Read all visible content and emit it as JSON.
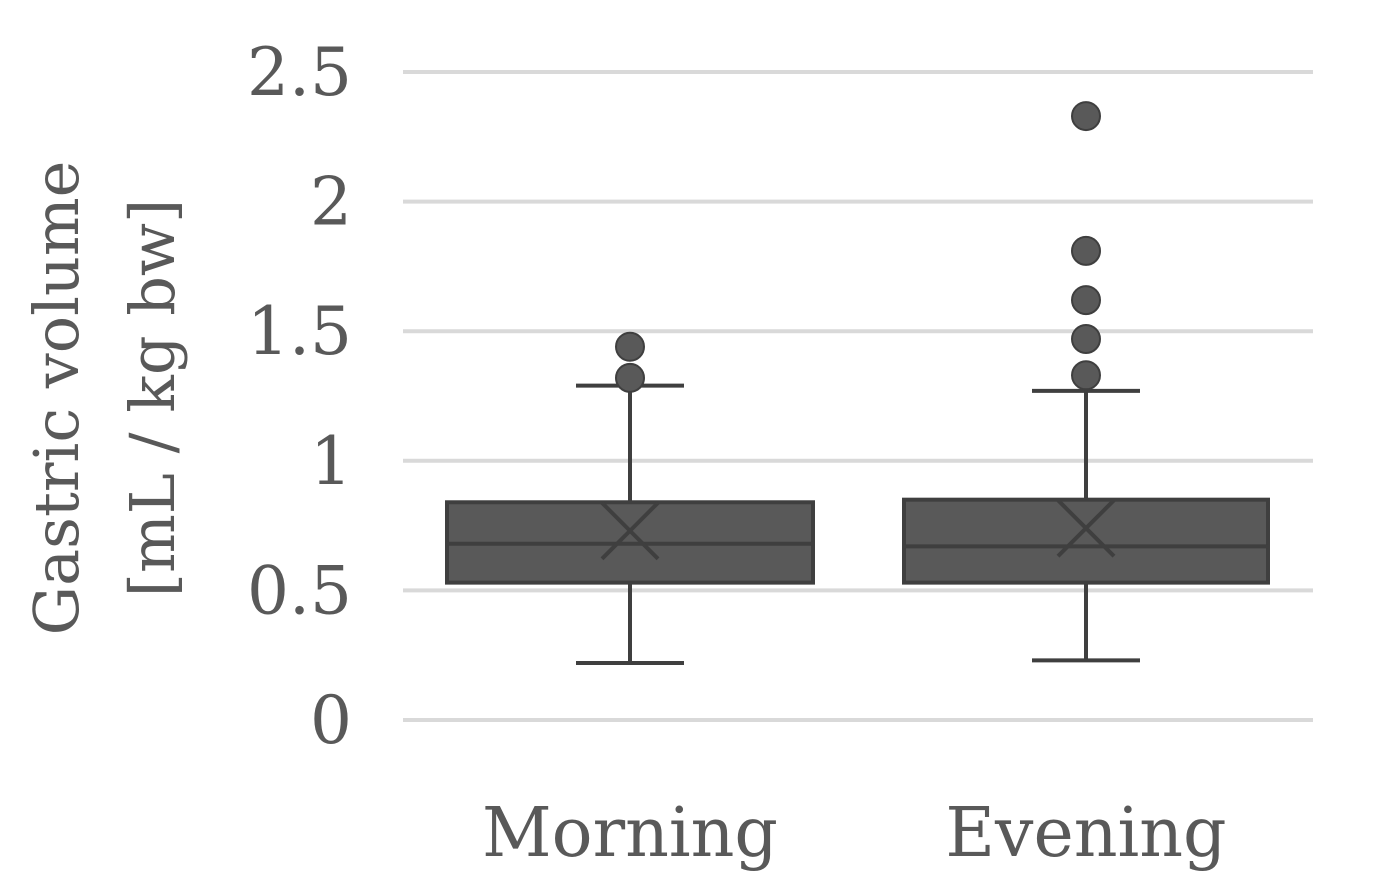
{
  "colors": {
    "box_fill": "#595959",
    "box_stroke": "#3f3f3f",
    "grid": "#d9d9d9",
    "text": "#595959"
  },
  "chart_data": {
    "type": "boxplot",
    "title": "",
    "ylabel_lines": [
      "Gastric volume",
      "[mL / kg bw]"
    ],
    "xlabel": "",
    "ylim": [
      0,
      2.5
    ],
    "yticks": [
      0,
      0.5,
      1,
      1.5,
      2,
      2.5
    ],
    "ytick_labels": [
      "0",
      "0.5",
      "1",
      "1.5",
      "2",
      "2.5"
    ],
    "grid": true,
    "categories": [
      "Morning",
      "Evening"
    ],
    "boxes": [
      {
        "category": "Morning",
        "whisker_low": 0.22,
        "q1": 0.53,
        "median": 0.68,
        "mean": 0.73,
        "q3": 0.84,
        "whisker_high": 1.29,
        "outliers": [
          1.32,
          1.44
        ]
      },
      {
        "category": "Evening",
        "whisker_low": 0.23,
        "q1": 0.53,
        "median": 0.67,
        "mean": 0.74,
        "q3": 0.85,
        "whisker_high": 1.27,
        "outliers": [
          1.33,
          1.47,
          1.62,
          1.81,
          2.33
        ]
      }
    ]
  }
}
